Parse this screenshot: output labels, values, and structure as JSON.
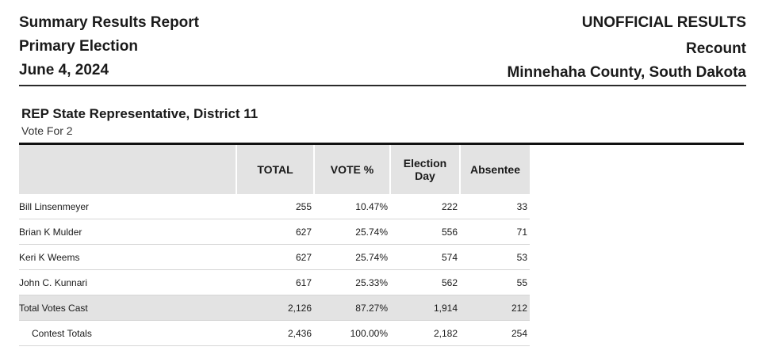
{
  "header": {
    "left": [
      "Summary Results Report",
      "Primary Election",
      "June 4, 2024"
    ],
    "right": [
      "UNOFFICIAL RESULTS",
      "Recount",
      "Minnehaha County, South Dakota"
    ]
  },
  "contest": {
    "title": "REP State Representative, District 11",
    "vote_for": "Vote For 2",
    "columns": [
      "TOTAL",
      "VOTE %",
      "Election Day",
      "Absentee"
    ],
    "rows": [
      {
        "name": "Bill Linsenmeyer",
        "total": "255",
        "pct": "10.47%",
        "election_day": "222",
        "absentee": "33"
      },
      {
        "name": "Brian K Mulder",
        "total": "627",
        "pct": "25.74%",
        "election_day": "556",
        "absentee": "71"
      },
      {
        "name": "Keri K Weems",
        "total": "627",
        "pct": "25.74%",
        "election_day": "574",
        "absentee": "53"
      },
      {
        "name": "John C. Kunnari",
        "total": "617",
        "pct": "25.33%",
        "election_day": "562",
        "absentee": "55"
      }
    ],
    "total_votes": {
      "name": "Total Votes Cast",
      "total": "2,126",
      "pct": "87.27%",
      "election_day": "1,914",
      "absentee": "212"
    },
    "contest_totals": {
      "name": "Contest Totals",
      "total": "2,436",
      "pct": "100.00%",
      "election_day": "2,182",
      "absentee": "254"
    }
  }
}
